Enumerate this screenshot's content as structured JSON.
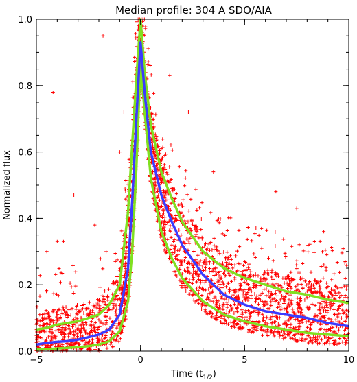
{
  "chart_data": {
    "type": "scatter",
    "title": "Median profile: 304 A SDO/AIA",
    "xlabel": "Time (t",
    "xlabel_sub": "1/2",
    "xlabel_close": ")",
    "ylabel": "Normalized flux",
    "xlim": [
      -5,
      10
    ],
    "ylim": [
      0,
      1
    ],
    "x_ticks": [
      -5,
      0,
      5,
      10
    ],
    "x_tick_labels": [
      "−5",
      "0",
      "5",
      "10"
    ],
    "y_ticks": [
      0.0,
      0.2,
      0.4,
      0.6,
      0.8,
      1.0
    ],
    "y_tick_labels": [
      "0.0",
      "0.2",
      "0.4",
      "0.6",
      "0.8",
      "1.0"
    ],
    "grid": false,
    "colors": {
      "points": "#ff0000",
      "median": "#3b3bff",
      "envelope": "#80e020"
    },
    "series": [
      {
        "role": "median",
        "x": [
          -5,
          -4.5,
          -4,
          -3.5,
          -3,
          -2.5,
          -2,
          -1.5,
          -1,
          -0.6,
          -0.4,
          -0.2,
          0,
          0.2,
          0.5,
          1,
          1.5,
          2,
          3,
          4,
          5,
          6,
          7,
          8,
          9,
          10
        ],
        "y": [
          0.02,
          0.025,
          0.028,
          0.03,
          0.035,
          0.042,
          0.05,
          0.065,
          0.11,
          0.25,
          0.45,
          0.7,
          0.93,
          0.78,
          0.6,
          0.47,
          0.39,
          0.32,
          0.23,
          0.17,
          0.14,
          0.12,
          0.11,
          0.1,
          0.085,
          0.075
        ]
      },
      {
        "role": "upper",
        "x": [
          -5,
          -4.5,
          -4,
          -3.5,
          -3,
          -2.5,
          -2,
          -1.5,
          -1,
          -0.6,
          -0.4,
          -0.2,
          0,
          0.2,
          0.5,
          1,
          1.5,
          2,
          3,
          4,
          5,
          6,
          7,
          8,
          9,
          10
        ],
        "y": [
          0.065,
          0.07,
          0.08,
          0.085,
          0.09,
          0.1,
          0.11,
          0.14,
          0.2,
          0.42,
          0.62,
          0.82,
          1.0,
          0.84,
          0.68,
          0.54,
          0.46,
          0.39,
          0.3,
          0.25,
          0.22,
          0.2,
          0.18,
          0.17,
          0.155,
          0.145
        ]
      },
      {
        "role": "lower",
        "x": [
          -5,
          -4.5,
          -4,
          -3.5,
          -3,
          -2.5,
          -2,
          -1.5,
          -1,
          -0.6,
          -0.4,
          -0.2,
          0,
          0.2,
          0.5,
          1,
          1.5,
          2,
          3,
          4,
          5,
          6,
          7,
          8,
          9,
          10
        ],
        "y": [
          0.005,
          0.006,
          0.008,
          0.01,
          0.012,
          0.015,
          0.02,
          0.03,
          0.06,
          0.15,
          0.3,
          0.55,
          0.87,
          0.72,
          0.52,
          0.36,
          0.28,
          0.22,
          0.15,
          0.11,
          0.09,
          0.075,
          0.065,
          0.055,
          0.05,
          0.045
        ]
      }
    ],
    "scatter_outliers": [
      {
        "x": -4.2,
        "y": 0.78
      },
      {
        "x": -1.8,
        "y": 0.95
      },
      {
        "x": 1.4,
        "y": 0.83
      },
      {
        "x": -3.2,
        "y": 0.47
      },
      {
        "x": -2.2,
        "y": 0.38
      },
      {
        "x": -3.7,
        "y": 0.33
      },
      {
        "x": -4.0,
        "y": 0.33
      },
      {
        "x": -4.5,
        "y": 0.3
      },
      {
        "x": 6.5,
        "y": 0.48
      },
      {
        "x": 7.5,
        "y": 0.43
      },
      {
        "x": 8.8,
        "y": 0.36
      },
      {
        "x": -1.0,
        "y": 0.6
      },
      {
        "x": 2.3,
        "y": 0.72
      },
      {
        "x": -0.8,
        "y": 0.72
      },
      {
        "x": 3.5,
        "y": 0.54
      }
    ]
  }
}
